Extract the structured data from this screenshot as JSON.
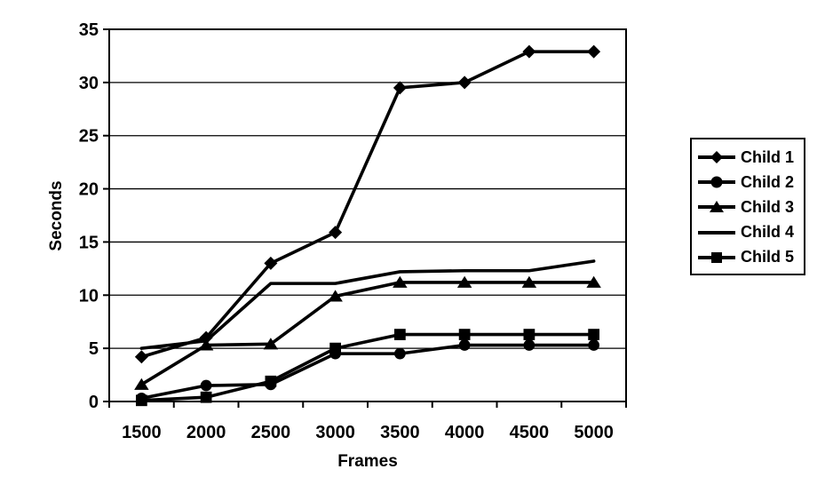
{
  "chart_data": {
    "type": "line",
    "title": "",
    "xlabel": "Frames",
    "ylabel": "Seconds",
    "x_categories": [
      "1500",
      "2000",
      "2500",
      "3000",
      "3500",
      "4000",
      "4500",
      "5000"
    ],
    "y_ticks": [
      0,
      5,
      10,
      15,
      20,
      25,
      30,
      35
    ],
    "ylim": [
      0,
      35
    ],
    "grid": true,
    "legend_position": "right",
    "line_color": "#000000",
    "background_color": "#ffffff",
    "series": [
      {
        "name": "Child 1",
        "marker": "diamond",
        "values": [
          4.2,
          6.0,
          13.0,
          15.9,
          29.5,
          30.0,
          32.9,
          32.9
        ]
      },
      {
        "name": "Child 2",
        "marker": "circle",
        "values": [
          0.3,
          1.5,
          1.6,
          4.5,
          4.5,
          5.3,
          5.3,
          5.3
        ]
      },
      {
        "name": "Child 3",
        "marker": "triangle",
        "values": [
          1.6,
          5.3,
          5.4,
          9.9,
          11.2,
          11.2,
          11.2,
          11.2
        ]
      },
      {
        "name": "Child 4",
        "marker": "none",
        "values": [
          5.0,
          5.7,
          11.1,
          11.1,
          12.2,
          12.3,
          12.3,
          13.2
        ]
      },
      {
        "name": "Child 5",
        "marker": "square",
        "values": [
          0.1,
          0.4,
          1.9,
          5.0,
          6.3,
          6.3,
          6.3,
          6.3
        ]
      }
    ]
  }
}
